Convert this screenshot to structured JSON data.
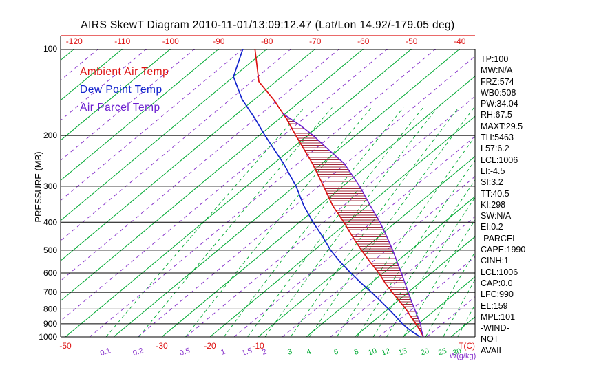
{
  "title": "AIRS SkewT Diagram 2010-11-01/13:09:12.47 (Lat/Lon 14.92/-179.05 deg)",
  "colors": {
    "red": "#DD1111",
    "blue": "#1122CC",
    "parcel_purple": "#6A1DCF",
    "grid_green": "#00AA33",
    "grid_purple": "#8833CC",
    "hatch": "#A02838",
    "black": "#000000"
  },
  "legend": {
    "items": [
      {
        "label": "Ambient Air Temp",
        "color": "#DD1111"
      },
      {
        "label": "Dew Point Temp",
        "color": "#1122CC"
      },
      {
        "label": "Air Parcel Temp",
        "color": "#6A1DCF"
      }
    ]
  },
  "stats_panel": {
    "lines": [
      "TP:100",
      "MW:N/A",
      "FRZ:574",
      "WB0:508",
      "PW:34.04",
      "RH:67.5",
      "MAXT:29.5",
      "TH:5463",
      "L57:6.2",
      "LCL:1006",
      "LI:-4.5",
      "SI:3.2",
      "TT:40.5",
      "KI:298",
      "SW:N/A",
      "EI:0.2",
      "-PARCEL-",
      "CAPE:1990",
      "CINH:1",
      "LCL:1006",
      "CAP:0.0",
      "LFC:990",
      "EL:159",
      "MPL:101",
      "-WIND-",
      "NOT",
      "AVAIL"
    ]
  },
  "chart_data": {
    "type": "skewt_log_p",
    "axes": {
      "pressure_label": "PRESSURE (MB)",
      "pressure_ticks_mb": [
        100,
        200,
        300,
        400,
        500,
        600,
        700,
        800,
        900,
        1000
      ],
      "pressure_range_mb": [
        100,
        1000
      ],
      "top_temperature_ticks_c": [
        -120,
        -110,
        -100,
        -90,
        -80,
        -70,
        -60,
        -50,
        -40
      ],
      "bottom_temperature_ticks_c": [
        -50,
        -30,
        -20,
        -10
      ],
      "temp_unit_label": "T(C)",
      "mixing_unit_label": "W(g/kg)",
      "mixing_ratio_ticks": [
        {
          "value": 0.1,
          "color": "#8833CC"
        },
        {
          "value": 0.2,
          "color": "#8833CC"
        },
        {
          "value": 0.5,
          "color": "#8833CC"
        },
        {
          "value": 1,
          "color": "#8833CC"
        },
        {
          "value": 1.5,
          "color": "#8833CC"
        },
        {
          "value": 2,
          "color": "#8833CC"
        },
        {
          "value": 3,
          "color": "#00AA33"
        },
        {
          "value": 4,
          "color": "#00AA33"
        },
        {
          "value": 6,
          "color": "#00AA33"
        },
        {
          "value": 8,
          "color": "#00AA33"
        },
        {
          "value": 10,
          "color": "#00AA33"
        },
        {
          "value": 12,
          "color": "#00AA33"
        },
        {
          "value": 15,
          "color": "#00AA33"
        },
        {
          "value": 20,
          "color": "#00AA33"
        },
        {
          "value": 25,
          "color": "#00AA33"
        },
        {
          "value": 30,
          "color": "#00AA33"
        }
      ]
    },
    "grid": {
      "isotherm_step_c": 10,
      "isotherm_dashed_offset_c": 5
    },
    "series": [
      {
        "id": "ambient",
        "name": "Ambient Air Temp",
        "color": "#DD1111",
        "width": 1.7,
        "points_p_t": [
          [
            100,
            -82.5
          ],
          [
            130,
            -73.5
          ],
          [
            150,
            -66
          ],
          [
            175,
            -58.5
          ],
          [
            200,
            -52.4
          ],
          [
            250,
            -42
          ],
          [
            300,
            -34
          ],
          [
            350,
            -27.3
          ],
          [
            400,
            -20.8
          ],
          [
            450,
            -15.3
          ],
          [
            500,
            -10.2
          ],
          [
            550,
            -5.4
          ],
          [
            600,
            -0.9
          ],
          [
            650,
            2.9
          ],
          [
            700,
            6.7
          ],
          [
            750,
            10.3
          ],
          [
            800,
            13.7
          ],
          [
            850,
            16.6
          ],
          [
            900,
            19.4
          ],
          [
            950,
            22
          ],
          [
            1000,
            24.3
          ]
        ]
      },
      {
        "id": "dew_point",
        "name": "Dew Point Temp",
        "color": "#1122CC",
        "width": 1.7,
        "points_p_t": [
          [
            100,
            -85
          ],
          [
            125,
            -80
          ],
          [
            150,
            -72.5
          ],
          [
            175,
            -65
          ],
          [
            200,
            -58.8
          ],
          [
            250,
            -48
          ],
          [
            300,
            -39.7
          ],
          [
            350,
            -33.3
          ],
          [
            400,
            -27.2
          ],
          [
            450,
            -21.5
          ],
          [
            500,
            -16.6
          ],
          [
            550,
            -11.6
          ],
          [
            600,
            -6.7
          ],
          [
            650,
            -2.1
          ],
          [
            700,
            2.4
          ],
          [
            750,
            6.4
          ],
          [
            800,
            10.1
          ],
          [
            850,
            13.5
          ],
          [
            900,
            16.6
          ],
          [
            950,
            20
          ],
          [
            1000,
            23.6
          ]
        ]
      },
      {
        "id": "parcel",
        "name": "Air Parcel Temp",
        "color": "#6A1DCF",
        "width": 1.5,
        "points_p_t": [
          [
            168,
            -60.5
          ],
          [
            185,
            -53.8
          ],
          [
            200,
            -48.8
          ],
          [
            225,
            -41.8
          ],
          [
            250,
            -35.4
          ],
          [
            300,
            -26.5
          ],
          [
            350,
            -19.5
          ],
          [
            400,
            -13.3
          ],
          [
            450,
            -8.2
          ],
          [
            500,
            -3.7
          ],
          [
            550,
            0.2
          ],
          [
            600,
            3.8
          ],
          [
            650,
            7
          ],
          [
            700,
            10
          ],
          [
            750,
            12.8
          ],
          [
            800,
            15.5
          ],
          [
            850,
            18
          ],
          [
            900,
            20.4
          ],
          [
            950,
            22.3
          ],
          [
            1000,
            24.3
          ]
        ]
      }
    ],
    "cape_region": {
      "between": [
        "ambient",
        "parcel"
      ],
      "p_top_mb": 168,
      "p_bottom_mb": 992,
      "hatch_style": "horizontal"
    }
  }
}
